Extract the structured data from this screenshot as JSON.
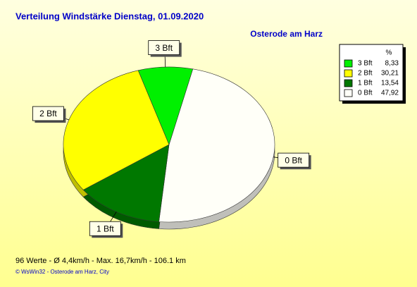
{
  "chart_data": {
    "type": "pie",
    "title": "Verteilung Windstärke  Dienstag, 01.09.2020",
    "subtitle": "Osterode am Harz",
    "categories": [
      "3 Bft",
      "2 Bft",
      "1 Bft",
      "0 Bft"
    ],
    "values": [
      8.33,
      30.21,
      13.54,
      47.92
    ],
    "value_labels": [
      "8,33",
      "30,21",
      "13,54",
      "47,92"
    ],
    "colors": [
      "#00f000",
      "#ffff00",
      "#007800",
      "#fffff8"
    ],
    "legend_title": "%",
    "legend": "top-right",
    "footer": [
      "96 Werte    -    Ø 4,4km/h  -  Max. 16,7km/h   -   106.1 km",
      "© WsWin32  -  Osterode am Harz, City"
    ]
  }
}
